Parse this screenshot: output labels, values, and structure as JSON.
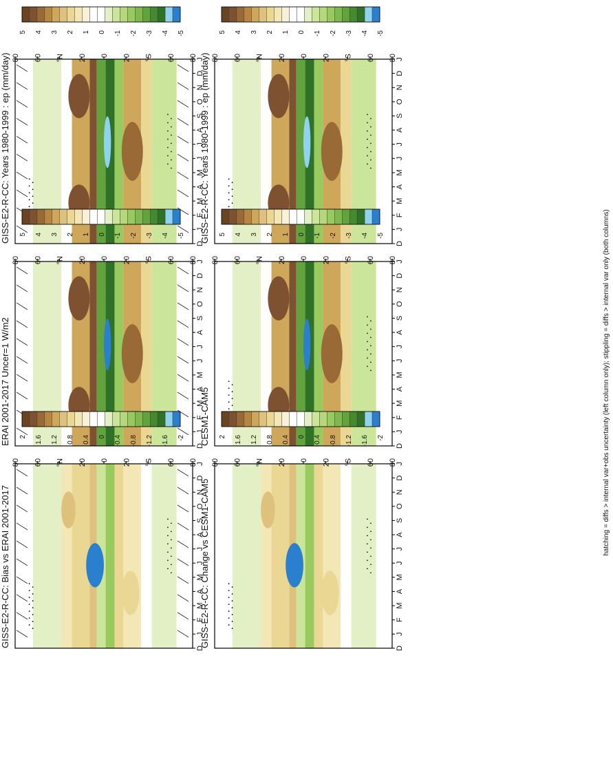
{
  "figure": {
    "footnote": "hatching = diffs > internal var+obs uncertainty (left column only); stippling = diffs > internal var only (both columns)",
    "colors": {
      "brown_dark": "#5a3a1e",
      "tan": "#d8b45a",
      "cream": "#f2ecc3",
      "white": "#ffffff",
      "green_light": "#cfe7a0",
      "green_dark": "#3f7f2a",
      "blue_light": "#8fd3f0",
      "blue": "#2a7fcf"
    }
  },
  "chart_data": [
    {
      "type": "heatmap",
      "title": "GISS-E2-R-CC: Years 1980-1999 : ep (mm/day)",
      "x_ticks": [
        "D",
        "J",
        "F",
        "M",
        "A",
        "M",
        "J",
        "J",
        "A",
        "S",
        "O",
        "N",
        "D",
        "J"
      ],
      "y_ticks": [
        "80",
        "60",
        "°N",
        "20",
        "0",
        "20",
        "°S",
        "60",
        "80"
      ],
      "colorbar_ticks": [
        "5",
        "4",
        "3",
        "2",
        "1",
        "0",
        "-1",
        "-2",
        "-3",
        "-4",
        "-5"
      ],
      "hatching": true,
      "stippling": true
    },
    {
      "type": "heatmap",
      "title": "GISS-E2-R-CC: Years 1980-1999 : ep (mm/day)",
      "x_ticks": [
        "D",
        "J",
        "F",
        "M",
        "A",
        "M",
        "J",
        "J",
        "A",
        "S",
        "O",
        "N",
        "D",
        "J"
      ],
      "y_ticks": [
        "80",
        "60",
        "°N",
        "20",
        "0",
        "20",
        "°S",
        "60",
        "80"
      ],
      "colorbar_ticks": [
        "5",
        "4",
        "3",
        "2",
        "1",
        "0",
        "-1",
        "-2",
        "-3",
        "-4",
        "-5"
      ],
      "hatching": false,
      "stippling": true
    },
    {
      "type": "heatmap",
      "title": "ERAI 2001-2017 Uncer=1 W/m2",
      "x_ticks": [
        "D",
        "J",
        "F",
        "M",
        "A",
        "M",
        "J",
        "J",
        "A",
        "S",
        "O",
        "N",
        "D",
        "J"
      ],
      "y_ticks": [
        "80",
        "60",
        "°N",
        "20",
        "0",
        "20",
        "°S",
        "60",
        "80"
      ],
      "colorbar_ticks": [
        "5",
        "4",
        "3",
        "2",
        "1",
        "0",
        "-1",
        "-2",
        "-3",
        "-4",
        "-5"
      ],
      "hatching": true,
      "stippling": false
    },
    {
      "type": "heatmap",
      "title": "CESM1-CAM5",
      "x_ticks": [
        "D",
        "J",
        "F",
        "M",
        "A",
        "M",
        "J",
        "J",
        "A",
        "S",
        "O",
        "N",
        "D",
        "J"
      ],
      "y_ticks": [
        "80",
        "60",
        "°N",
        "20",
        "0",
        "20",
        "°S",
        "60",
        "80"
      ],
      "colorbar_ticks": [
        "5",
        "4",
        "3",
        "2",
        "1",
        "0",
        "-1",
        "-2",
        "-3",
        "-4",
        "-5"
      ],
      "hatching": false,
      "stippling": true
    },
    {
      "type": "heatmap",
      "title": "GISS-E2-R-CC: Bias vs ERAI 2001-2017",
      "x_ticks": [
        "D",
        "J",
        "F",
        "M",
        "A",
        "M",
        "J",
        "J",
        "A",
        "S",
        "O",
        "N",
        "D",
        "J"
      ],
      "y_ticks": [
        "80",
        "60",
        "°N",
        "20",
        "0",
        "20",
        "°S",
        "60",
        "80"
      ],
      "colorbar_ticks": [
        "2",
        "1.6",
        "1.2",
        "0.8",
        "0.4",
        "0",
        "-0.4",
        "-0.8",
        "-1.2",
        "-1.6",
        "-2"
      ],
      "hatching": true,
      "stippling": true
    },
    {
      "type": "heatmap",
      "title": "GISS-E2-R-CC: Change vs CESM1-CAM5",
      "x_ticks": [
        "D",
        "J",
        "F",
        "M",
        "A",
        "M",
        "J",
        "J",
        "A",
        "S",
        "O",
        "N",
        "D",
        "J"
      ],
      "y_ticks": [
        "80",
        "60",
        "°N",
        "20",
        "0",
        "20",
        "°S",
        "60",
        "80"
      ],
      "colorbar_ticks": [
        "2",
        "1.6",
        "1.2",
        "0.8",
        "0.4",
        "0",
        "-0.4",
        "-0.8",
        "-1.2",
        "-1.6",
        "-2"
      ],
      "hatching": false,
      "stippling": true
    }
  ]
}
